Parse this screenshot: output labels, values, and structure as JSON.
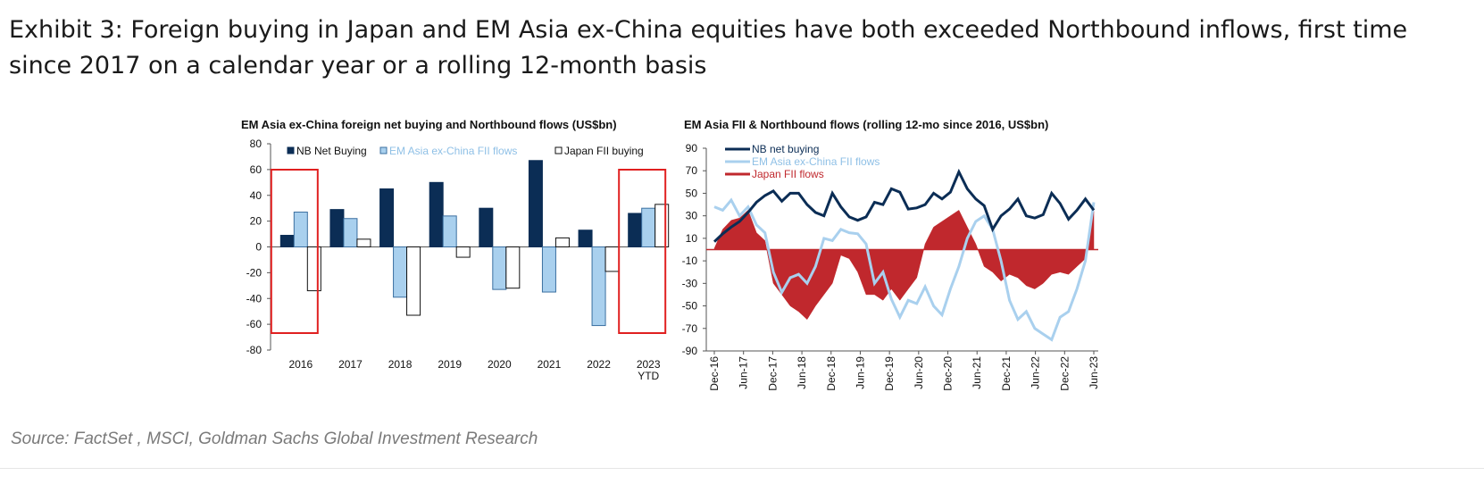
{
  "exhibit_title": "Exhibit 3: Foreign buying in Japan and EM Asia ex-China equities have both exceeded Northbound inflows, first time since 2017 on a calendar year or a rolling 12-month basis",
  "source": "Source: FactSet , MSCI, Goldman Sachs Global Investment Research",
  "colors": {
    "navy": "#0b2d55",
    "light_blue": "#a9d0ee",
    "red": "#c0282d",
    "highlight": "#e02020"
  },
  "chart_data": [
    {
      "type": "bar",
      "title": "EM Asia ex-China foreign net buying and Northbound flows (US$bn)",
      "categories": [
        "2016",
        "2017",
        "2018",
        "2019",
        "2020",
        "2021",
        "2022",
        "2023 YTD"
      ],
      "series": [
        {
          "name": "NB Net Buying",
          "values": [
            9,
            29,
            45,
            50,
            30,
            67,
            13,
            26
          ]
        },
        {
          "name": "EM Asia ex-China FII flows",
          "values": [
            27,
            22,
            -39,
            24,
            -33,
            -35,
            -61,
            30
          ]
        },
        {
          "name": "Japan FII buying",
          "values": [
            -34,
            6,
            -53,
            -8,
            -32,
            7,
            -19,
            33
          ]
        }
      ],
      "ylim": [
        -80,
        80
      ],
      "yticks": [
        80,
        60,
        40,
        20,
        0,
        -20,
        -40,
        -60,
        -80
      ],
      "highlighted_categories": [
        "2016",
        "2023 YTD"
      ],
      "legend": "top"
    },
    {
      "type": "area",
      "title": "EM Asia FII & Northbound flows (rolling 12-mo since 2016, US$bn)",
      "x_start": "Dec-16",
      "x_end": "Jun-23",
      "xticks": [
        "Dec-16",
        "Jun-17",
        "Dec-17",
        "Jun-18",
        "Dec-18",
        "Jun-19",
        "Dec-19",
        "Jun-20",
        "Dec-20",
        "Jun-21",
        "Dec-21",
        "Jun-22",
        "Dec-22",
        "Jun-23"
      ],
      "ylim": [
        -90,
        90
      ],
      "yticks": [
        90,
        70,
        50,
        30,
        10,
        -10,
        -30,
        -50,
        -70,
        -90
      ],
      "x_anchor_positions": [
        0,
        6,
        12,
        18,
        24,
        30,
        36,
        42,
        48,
        54,
        60,
        66,
        72,
        78
      ],
      "series": [
        {
          "name": "NB net buying",
          "style": "line",
          "values": [
            7,
            14,
            20,
            25,
            33,
            42,
            48,
            52,
            43,
            50,
            50,
            40,
            33,
            30,
            50,
            38,
            29,
            26,
            29,
            42,
            40,
            54,
            51,
            36,
            37,
            40,
            50,
            45,
            51,
            69,
            54,
            45,
            39,
            18,
            30,
            36,
            45,
            30,
            28,
            31,
            50,
            41,
            27,
            35,
            45,
            35
          ]
        },
        {
          "name": "EM Asia ex-China FII flows",
          "style": "line",
          "values": [
            38,
            35,
            44,
            30,
            38,
            22,
            15,
            -20,
            -38,
            -25,
            -22,
            -30,
            -15,
            10,
            8,
            18,
            15,
            14,
            5,
            -30,
            -20,
            -44,
            -60,
            -45,
            -48,
            -33,
            -50,
            -58,
            -35,
            -15,
            10,
            25,
            30,
            18,
            -10,
            -45,
            -62,
            -55,
            -70,
            -75,
            -80,
            -60,
            -55,
            -35,
            -10,
            42
          ]
        },
        {
          "name": "Japan FII flows",
          "style": "area",
          "values": [
            1,
            18,
            26,
            28,
            35,
            15,
            8,
            -30,
            -40,
            -50,
            -55,
            -62,
            -50,
            -40,
            -30,
            -5,
            -8,
            -20,
            -40,
            -40,
            -45,
            -35,
            -45,
            -35,
            -25,
            5,
            20,
            25,
            30,
            35,
            20,
            5,
            -15,
            -20,
            -28,
            -22,
            -25,
            -32,
            -35,
            -30,
            -22,
            -20,
            -22,
            -15,
            -8,
            34
          ]
        }
      ],
      "legend": "top-left"
    }
  ]
}
